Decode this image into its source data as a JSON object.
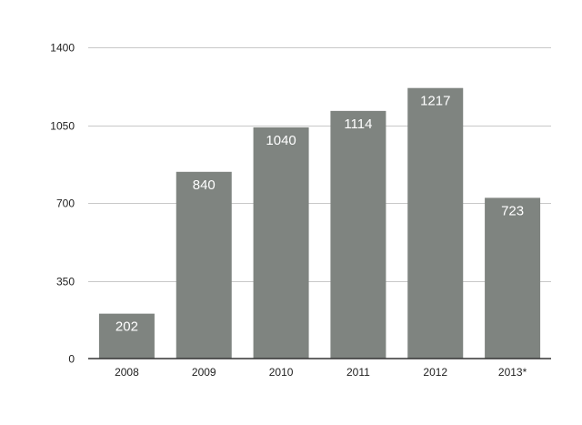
{
  "chart_data": {
    "type": "bar",
    "categories": [
      "2008",
      "2009",
      "2010",
      "2011",
      "2012",
      "2013*"
    ],
    "values": [
      202,
      840,
      1040,
      1114,
      1217,
      723
    ],
    "data_labels": [
      "202",
      "840",
      "1040",
      "1114",
      "1217",
      "723"
    ],
    "y_ticks": [
      0,
      350,
      700,
      1050,
      1400
    ],
    "y_tick_labels": [
      "0",
      "350",
      "700",
      "1050",
      "1400"
    ],
    "ylim": [
      0,
      1400
    ],
    "grid": true,
    "legend": "none",
    "bar_color": "#7f8480",
    "label_color": "#ffffff"
  }
}
